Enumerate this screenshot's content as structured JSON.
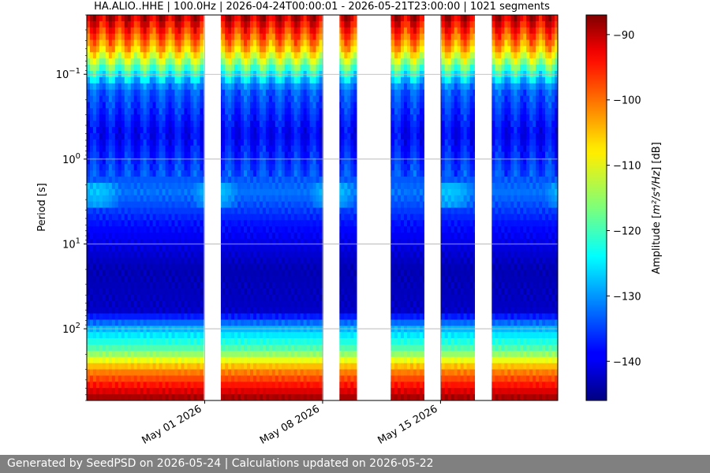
{
  "chart_data": {
    "type": "heatmap",
    "title": "HA.ALIO..HHE | 100.0Hz | 2026-04-24T00:00:01 - 2026-05-21T23:00:00 | 1021 segments",
    "xlabel": "",
    "ylabel": "Period [s]",
    "x_range": [
      "2026-04-24T00:00:01",
      "2026-05-21T23:00:00"
    ],
    "x_ticks": [
      {
        "date": "2026-05-01",
        "label": "May 01 2026"
      },
      {
        "date": "2026-05-08",
        "label": "May 08 2026"
      },
      {
        "date": "2026-05-15",
        "label": "May 15 2026"
      }
    ],
    "y_scale": "log",
    "y_inverted": true,
    "y_range": [
      0.02,
      700
    ],
    "y_ticks": [
      {
        "value": 0.1,
        "base": "10",
        "exp": "−1"
      },
      {
        "value": 1,
        "base": "10",
        "exp": "0"
      },
      {
        "value": 10,
        "base": "10",
        "exp": "1"
      },
      {
        "value": 100,
        "base": "10",
        "exp": "2"
      }
    ],
    "grid": true,
    "data_gaps": [
      [
        "2026-04-30T23:00:00",
        "2026-05-01T23:00:00"
      ],
      [
        "2026-05-08T01:00:00",
        "2026-05-09T00:00:00"
      ],
      [
        "2026-05-10T01:00:00",
        "2026-05-12T01:00:00"
      ],
      [
        "2026-05-14T01:00:00",
        "2026-05-15T00:00:00"
      ],
      [
        "2026-05-17T01:00:00",
        "2026-05-18T01:00:00"
      ]
    ],
    "spectrum_profile": [
      {
        "period": 0.02,
        "db": -90
      },
      {
        "period": 0.05,
        "db": -105
      },
      {
        "period": 0.09,
        "db": -120
      },
      {
        "period": 0.15,
        "db": -133
      },
      {
        "period": 0.5,
        "db": -139
      },
      {
        "period": 2.5,
        "db": -132
      },
      {
        "period": 6,
        "db": -138
      },
      {
        "period": 20,
        "db": -143
      },
      {
        "period": 60,
        "db": -142
      },
      {
        "period": 100,
        "db": -128
      },
      {
        "period": 180,
        "db": -118
      },
      {
        "period": 300,
        "db": -103
      },
      {
        "period": 700,
        "db": -88
      }
    ],
    "colorbar": {
      "label_prefix": "Amplitude [",
      "label_math": "m²/s⁴/Hz",
      "label_suffix": "] [dB]",
      "range": [
        -146,
        -87
      ],
      "ticks": [
        {
          "value": -90,
          "label": "−90"
        },
        {
          "value": -100,
          "label": "−100"
        },
        {
          "value": -110,
          "label": "−110"
        },
        {
          "value": -120,
          "label": "−120"
        },
        {
          "value": -130,
          "label": "−130"
        },
        {
          "value": -140,
          "label": "−140"
        }
      ],
      "colormap": "jet"
    }
  },
  "footer": {
    "text": "Generated by SeedPSD on 2026-05-24 | Calculations updated on 2026-05-22"
  }
}
